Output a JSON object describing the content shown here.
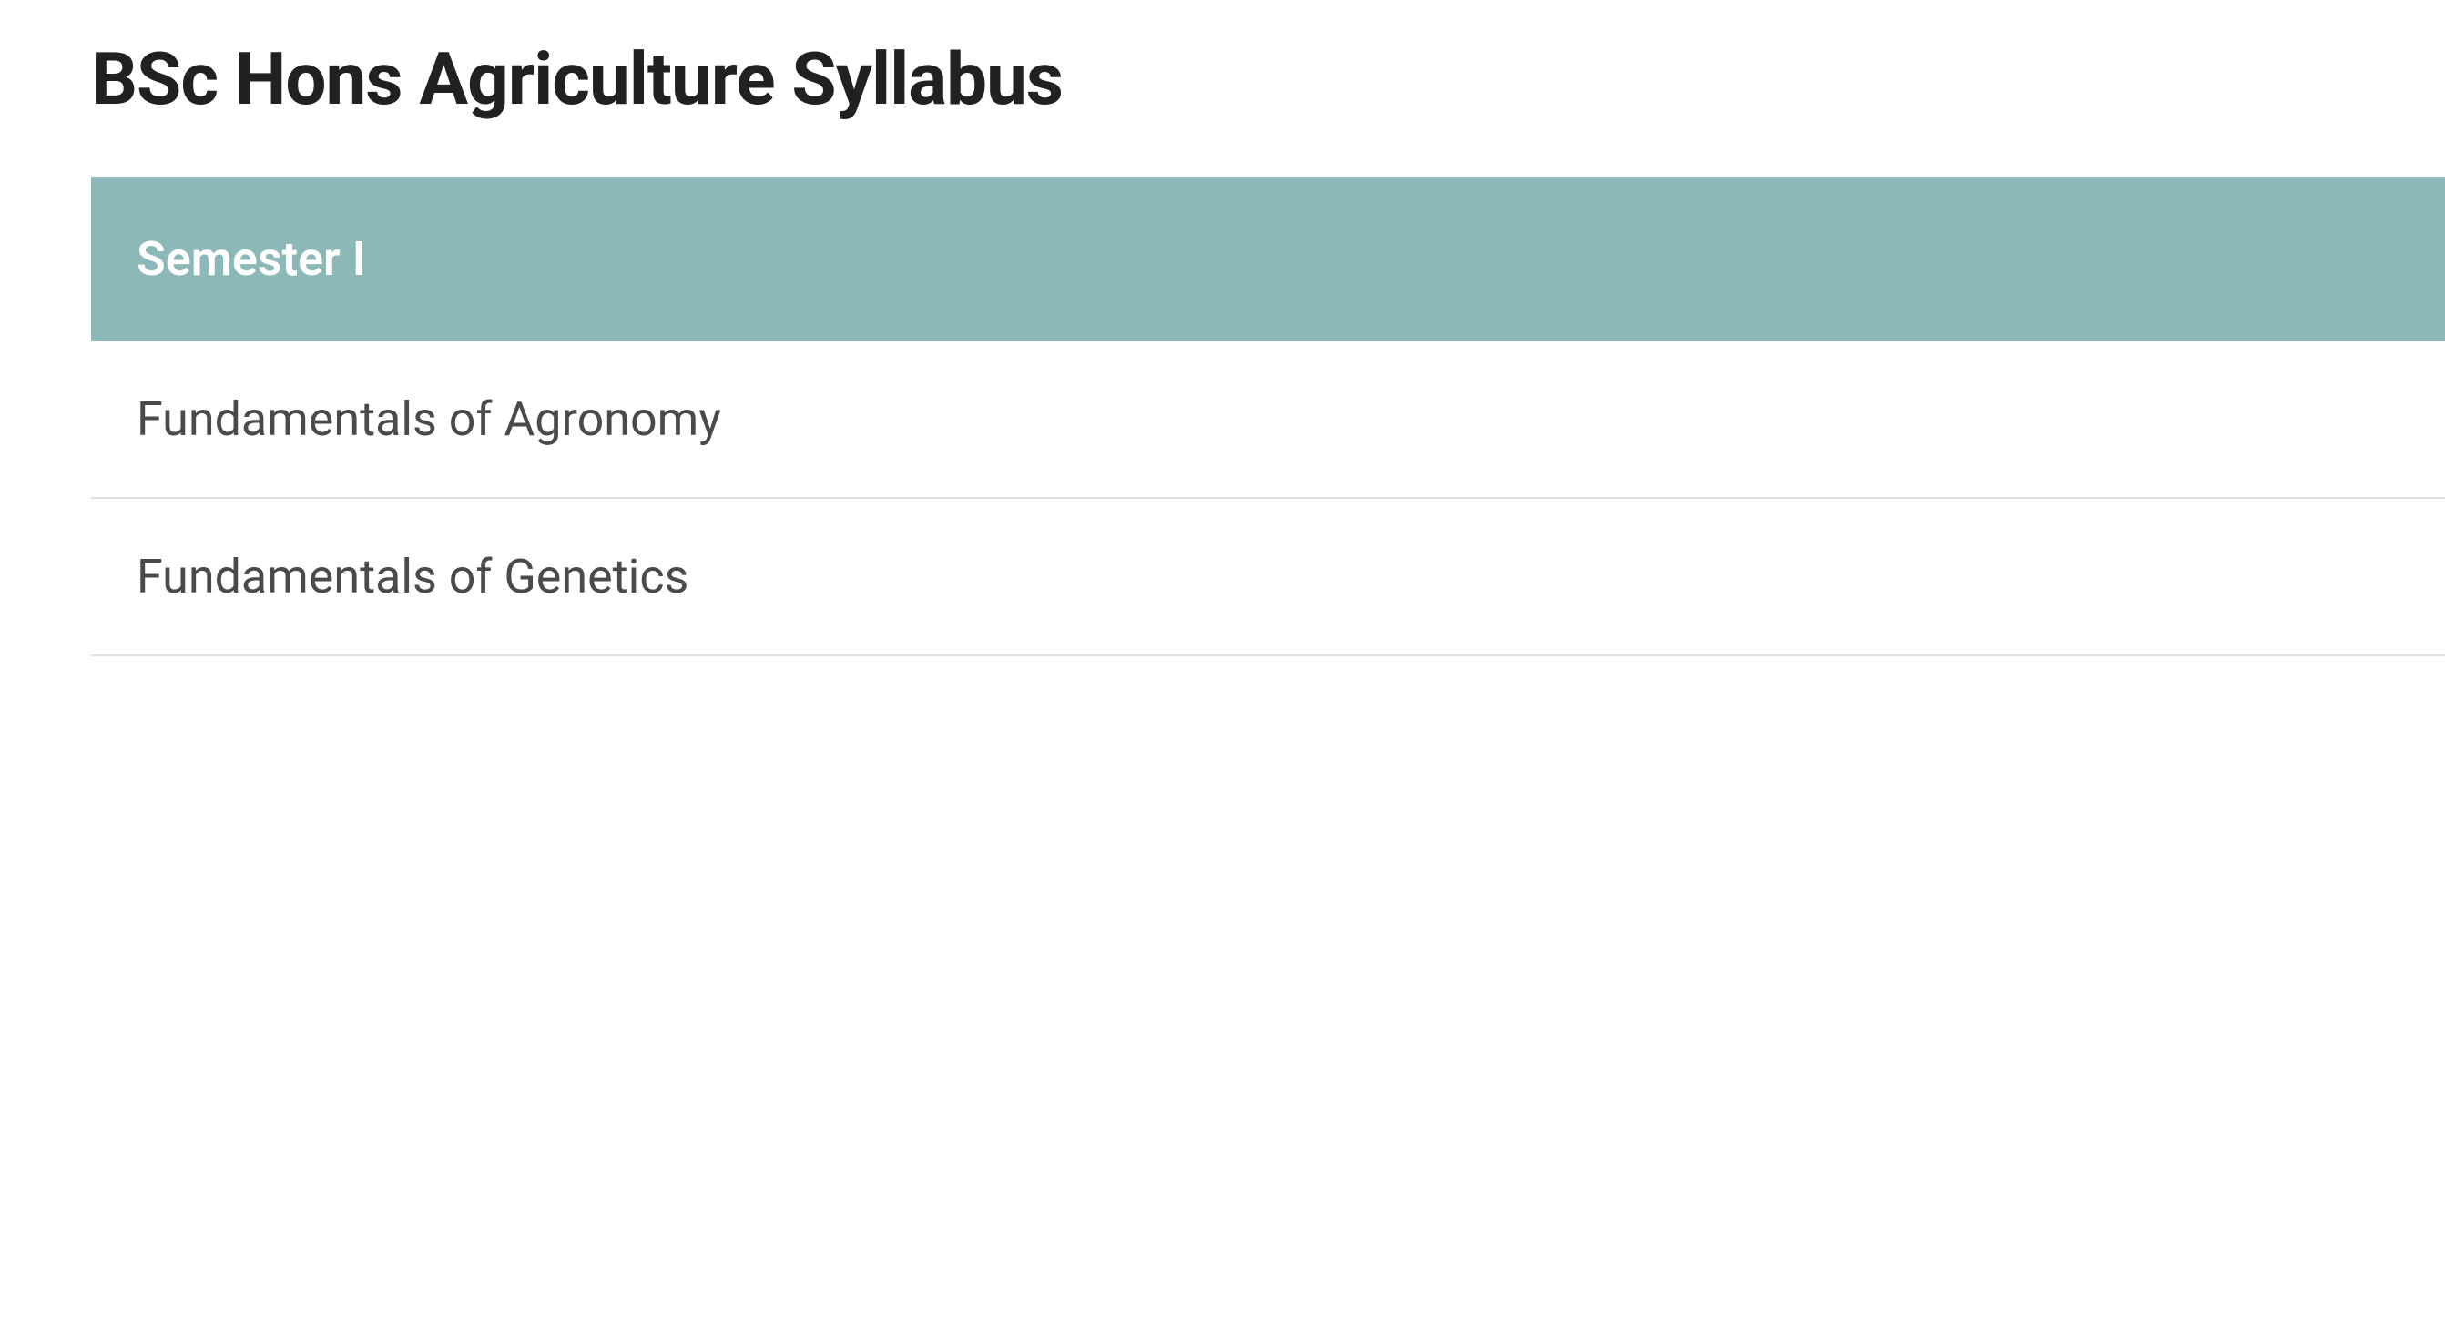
{
  "title": "BSc Hons Agriculture Syllabus",
  "table": {
    "header": "Semester I",
    "rows": [
      "Fundamentals of Agronomy",
      "Fundamentals of Genetics"
    ],
    "header_bg_color": "#8cb8b8",
    "header_text_color": "#ffffff",
    "row_text_color": "#4a4a4a",
    "border_color": "#e0e0e0",
    "title_color": "#212121",
    "title_fontsize": 80,
    "header_fontsize": 52,
    "cell_fontsize": 52
  }
}
